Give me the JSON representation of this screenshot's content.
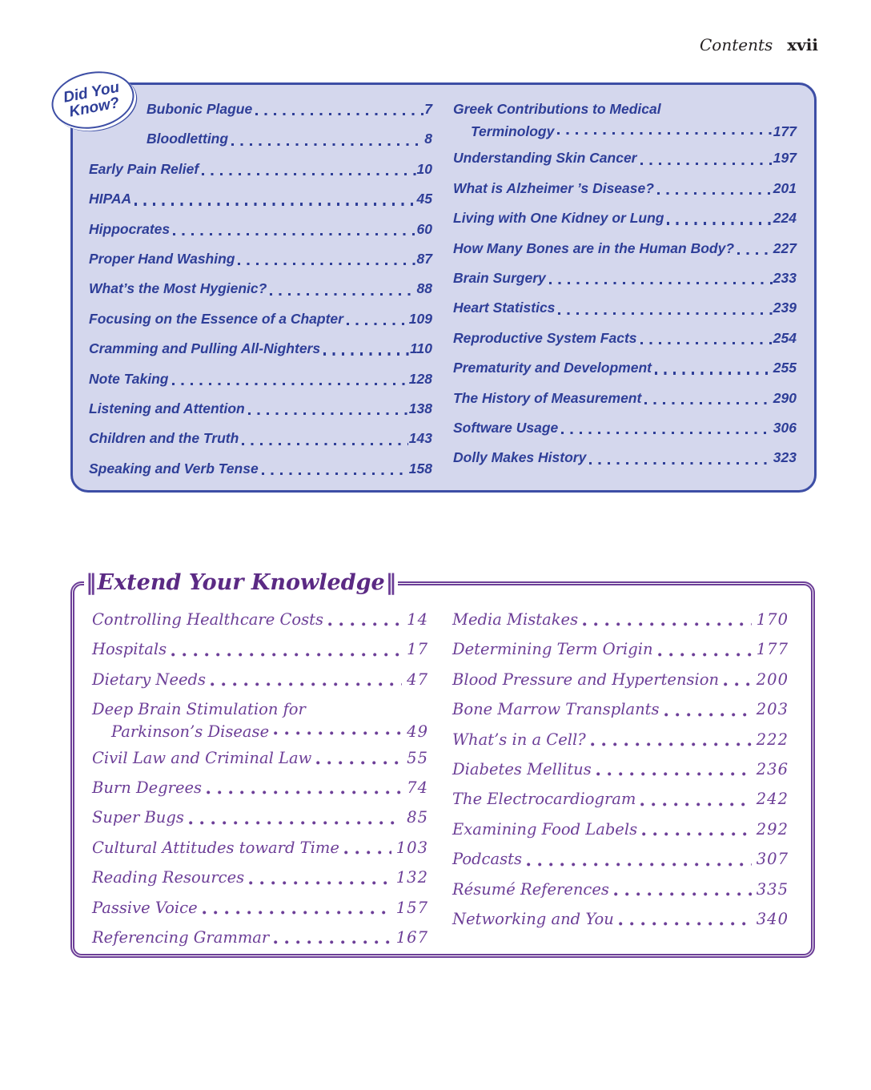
{
  "header": {
    "contents_label": "Contents",
    "page_number": "xvii"
  },
  "colors": {
    "dyk_bg": "#d4d7ed",
    "dyk_border": "#3d4ea5",
    "dyk_text": "#2e3e98",
    "eyk_text": "#6c3e97",
    "eyk_title": "#5b2a84",
    "eyk_border": "#6c3e97",
    "header_text": "#231f20"
  },
  "did_you_know_box": {
    "badge": {
      "line1": "Did You",
      "line2": "Know?"
    },
    "left_entries": [
      {
        "title": "Bubonic Plague",
        "page": "7",
        "indent": true
      },
      {
        "title": "Bloodletting",
        "page": "8",
        "indent": true
      },
      {
        "title": "Early Pain Relief",
        "page": "10"
      },
      {
        "title": "HIPAA",
        "page": "45"
      },
      {
        "title": "Hippocrates",
        "page": "60"
      },
      {
        "title": "Proper Hand Washing",
        "page": "87"
      },
      {
        "title": "What’s the Most Hygienic?",
        "page": "88"
      },
      {
        "title": "Focusing on the Essence of a Chapter",
        "page": "109"
      },
      {
        "title": "Cramming and Pulling All-Nighters",
        "page": "110"
      },
      {
        "title": "Note Taking",
        "page": "128"
      },
      {
        "title": "Listening and Attention",
        "page": "138"
      },
      {
        "title": "Children and the Truth",
        "page": "143"
      },
      {
        "title": "Speaking and Verb Tense",
        "page": "158"
      }
    ],
    "right_entries": [
      {
        "title": "Greek Contributions to Medical",
        "title2": "Terminology",
        "page": "177"
      },
      {
        "title": "Understanding Skin Cancer",
        "page": "197"
      },
      {
        "title": "What is Alzheimer ’s Disease?",
        "page": "201"
      },
      {
        "title": "Living with One Kidney or Lung",
        "page": "224"
      },
      {
        "title": "How Many Bones are in the Human Body?",
        "page": "227"
      },
      {
        "title": "Brain Surgery",
        "page": "233"
      },
      {
        "title": "Heart Statistics",
        "page": "239"
      },
      {
        "title": "Reproductive System Facts",
        "page": "254"
      },
      {
        "title": "Prematurity and Development",
        "page": "255"
      },
      {
        "title": "The History of Measurement",
        "page": "290"
      },
      {
        "title": "Software Usage",
        "page": "306"
      },
      {
        "title": "Dolly Makes History",
        "page": "323"
      }
    ]
  },
  "extend_your_knowledge": {
    "title": "Extend Your Knowledge",
    "title_prefix": "‖",
    "title_suffix": "‖",
    "left_entries": [
      {
        "title": "Controlling Healthcare Costs",
        "page": "14"
      },
      {
        "title": "Hospitals",
        "page": "17"
      },
      {
        "title": "Dietary Needs",
        "page": "47"
      },
      {
        "title": "Deep Brain Stimulation for",
        "title2": "Parkinson’s Disease",
        "page": "49"
      },
      {
        "title": "Civil Law and Criminal Law",
        "page": "55"
      },
      {
        "title": "Burn Degrees",
        "page": "74"
      },
      {
        "title": "Super Bugs",
        "page": "85"
      },
      {
        "title": "Cultural Attitudes toward Time",
        "page": "103"
      },
      {
        "title": "Reading Resources",
        "page": "132"
      },
      {
        "title": "Passive Voice",
        "page": "157"
      },
      {
        "title": "Referencing Grammar",
        "page": "167"
      }
    ],
    "right_entries": [
      {
        "title": "Media Mistakes",
        "page": "170"
      },
      {
        "title": "Determining Term Origin",
        "page": "177"
      },
      {
        "title": "Blood Pressure and Hypertension",
        "page": "200"
      },
      {
        "title": "Bone Marrow Transplants",
        "page": "203"
      },
      {
        "title": "What’s in a Cell?",
        "page": "222"
      },
      {
        "title": "Diabetes Mellitus",
        "page": "236"
      },
      {
        "title": "The Electrocardiogram",
        "page": "242"
      },
      {
        "title": "Examining Food Labels",
        "page": "292"
      },
      {
        "title": "Podcasts",
        "page": "307"
      },
      {
        "title": "Résumé References",
        "page": "335"
      },
      {
        "title": "Networking and You",
        "page": "340"
      }
    ]
  }
}
